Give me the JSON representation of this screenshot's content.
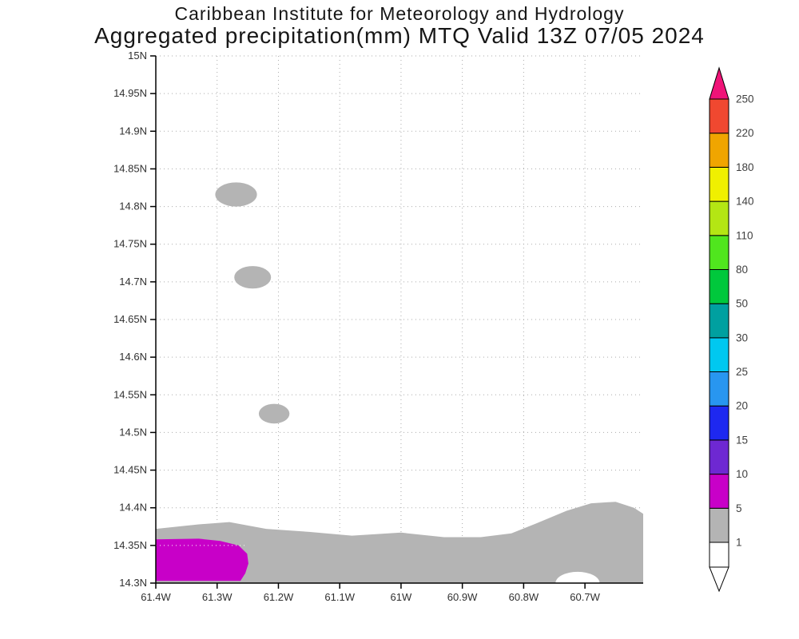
{
  "chart_data": {
    "type": "heatmap",
    "title_line1": "Caribbean Institute for Meteorology and Hydrology",
    "title_line2": "Aggregated precipitation(mm) MTQ Valid 13Z 07/05 2024",
    "units": "mm",
    "grid": {
      "style": "dotted",
      "color": "#aaaaaa"
    },
    "x_axis": {
      "range_lon_w": [
        61.4,
        60.605
      ],
      "ticks": [
        {
          "lon_w": 61.4,
          "label": "61.4W"
        },
        {
          "lon_w": 61.3,
          "label": "61.3W"
        },
        {
          "lon_w": 61.2,
          "label": "61.2W"
        },
        {
          "lon_w": 61.1,
          "label": "61.1W"
        },
        {
          "lon_w": 61.0,
          "label": "61W"
        },
        {
          "lon_w": 60.9,
          "label": "60.9W"
        },
        {
          "lon_w": 60.8,
          "label": "60.8W"
        },
        {
          "lon_w": 60.7,
          "label": "60.7W"
        }
      ]
    },
    "y_axis": {
      "range_lat": [
        14.3,
        15.0
      ],
      "ticks": [
        {
          "lat": 15.0,
          "label": "15N"
        },
        {
          "lat": 14.95,
          "label": "14.95N"
        },
        {
          "lat": 14.9,
          "label": "14.9N"
        },
        {
          "lat": 14.85,
          "label": "14.85N"
        },
        {
          "lat": 14.8,
          "label": "14.8N"
        },
        {
          "lat": 14.75,
          "label": "14.75N"
        },
        {
          "lat": 14.7,
          "label": "14.7N"
        },
        {
          "lat": 14.65,
          "label": "14.65N"
        },
        {
          "lat": 14.6,
          "label": "14.6N"
        },
        {
          "lat": 14.55,
          "label": "14.55N"
        },
        {
          "lat": 14.5,
          "label": "14.5N"
        },
        {
          "lat": 14.45,
          "label": "14.45N"
        },
        {
          "lat": 14.4,
          "label": "14.4N"
        },
        {
          "lat": 14.35,
          "label": "14.35N"
        },
        {
          "lat": 14.3,
          "label": "14.3N"
        }
      ]
    },
    "colorbar": {
      "levels": [
        1,
        5,
        10,
        15,
        20,
        25,
        30,
        50,
        80,
        110,
        140,
        180,
        220,
        250
      ],
      "labels": [
        "1",
        "5",
        "10",
        "15",
        "20",
        "25",
        "30",
        "50",
        "80",
        "110",
        "140",
        "180",
        "220",
        "250"
      ],
      "interval_colors": [
        "#b4b4b4",
        "#c800c8",
        "#6e28d2",
        "#1e28f0",
        "#2896f0",
        "#00c8f0",
        "#00a0a0",
        "#00c83c",
        "#50e61e",
        "#b4e614",
        "#f0f000",
        "#f0a500",
        "#f04830"
      ],
      "under_color": "#ffffff",
      "over_color": "#f01478",
      "outline_color": "#000000",
      "label_color": "#404040"
    },
    "features": [
      {
        "type": "polygon",
        "level_mm": "1-5",
        "color": "#b4b4b4",
        "points": [
          [
            61.4,
            14.372
          ],
          [
            61.33,
            14.378
          ],
          [
            61.28,
            14.381
          ],
          [
            61.22,
            14.372
          ],
          [
            61.15,
            14.368
          ],
          [
            61.08,
            14.363
          ],
          [
            61.0,
            14.367
          ],
          [
            60.93,
            14.361
          ],
          [
            60.87,
            14.361
          ],
          [
            60.82,
            14.366
          ],
          [
            60.78,
            14.379
          ],
          [
            60.73,
            14.396
          ],
          [
            60.69,
            14.406
          ],
          [
            60.65,
            14.408
          ],
          [
            60.62,
            14.4
          ],
          [
            60.605,
            14.392
          ],
          [
            60.605,
            14.3
          ],
          [
            61.4,
            14.3
          ]
        ]
      },
      {
        "type": "ellipse",
        "level_mm": "0",
        "color": "#ffffff",
        "lon_w": 60.712,
        "lat": 14.3,
        "rlon": 0.036,
        "rlat": 0.015
      },
      {
        "type": "polygon",
        "level_mm": "5-10",
        "color": "#c800c8",
        "points": [
          [
            61.4,
            14.358
          ],
          [
            61.33,
            14.359
          ],
          [
            61.295,
            14.356
          ],
          [
            61.265,
            14.35
          ],
          [
            61.251,
            14.339
          ],
          [
            61.249,
            14.326
          ],
          [
            61.254,
            14.313
          ],
          [
            61.262,
            14.303
          ],
          [
            61.4,
            14.303
          ]
        ]
      },
      {
        "type": "ellipse",
        "level_mm": "1-5",
        "color": "#b4b4b4",
        "lon_w": 61.269,
        "lat": 14.816,
        "rlon": 0.034,
        "rlat": 0.016
      },
      {
        "type": "ellipse",
        "level_mm": "1-5",
        "color": "#b4b4b4",
        "lon_w": 61.242,
        "lat": 14.706,
        "rlon": 0.03,
        "rlat": 0.015
      },
      {
        "type": "ellipse",
        "level_mm": "1-5",
        "color": "#b4b4b4",
        "lon_w": 61.207,
        "lat": 14.525,
        "rlon": 0.025,
        "rlat": 0.013
      }
    ]
  }
}
